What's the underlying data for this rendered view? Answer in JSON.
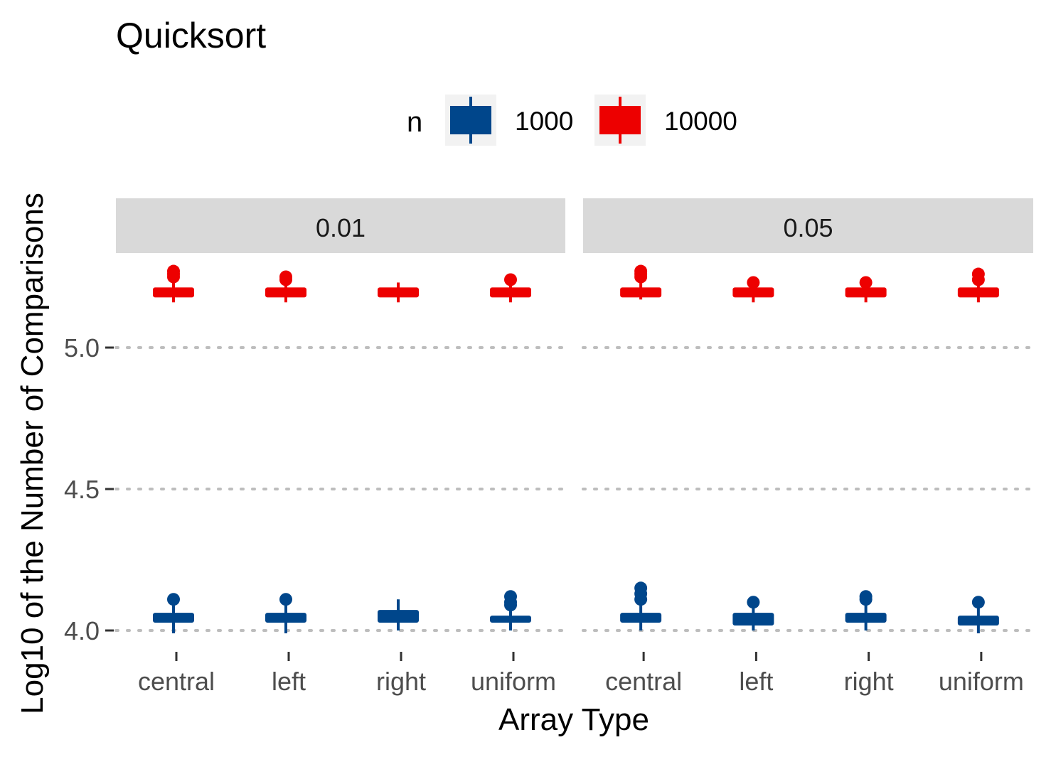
{
  "chart_data": {
    "type": "boxplot",
    "title": "Quicksort",
    "xlabel": "Array Type",
    "ylabel": "Log10 of the Number of Comparisons",
    "ylim": [
      3.93,
      5.33
    ],
    "yticks": [
      4.0,
      4.5,
      5.0
    ],
    "ytick_labels": [
      "4.0",
      "4.5",
      "5.0"
    ],
    "grid": "horizontal dotted",
    "legend": {
      "title": "n",
      "position": "top",
      "entries": [
        {
          "label": "1000",
          "color": "#00468b"
        },
        {
          "label": "10000",
          "color": "#ed0000"
        }
      ]
    },
    "facets": [
      {
        "label": "0.01",
        "categories": [
          "central",
          "left",
          "right",
          "uniform"
        ],
        "series": [
          {
            "name": "1000",
            "boxes": [
              {
                "min": 3.99,
                "q1": 4.03,
                "median": 4.04,
                "q3": 4.06,
                "max": 4.09,
                "outliers": [
                  4.11
                ]
              },
              {
                "min": 3.99,
                "q1": 4.03,
                "median": 4.04,
                "q3": 4.06,
                "max": 4.09,
                "outliers": [
                  4.11
                ]
              },
              {
                "min": 4.0,
                "q1": 4.03,
                "median": 4.05,
                "q3": 4.07,
                "max": 4.11,
                "outliers": []
              },
              {
                "min": 4.0,
                "q1": 4.03,
                "median": 4.04,
                "q3": 4.05,
                "max": 4.07,
                "outliers": [
                  4.09,
                  4.1,
                  4.12
                ]
              }
            ]
          },
          {
            "name": "10000",
            "boxes": [
              {
                "min": 5.16,
                "q1": 5.18,
                "median": 5.19,
                "q3": 5.21,
                "max": 5.23,
                "outliers": [
                  5.25,
                  5.26,
                  5.27
                ]
              },
              {
                "min": 5.16,
                "q1": 5.18,
                "median": 5.19,
                "q3": 5.21,
                "max": 5.23,
                "outliers": [
                  5.24,
                  5.25
                ]
              },
              {
                "min": 5.16,
                "q1": 5.18,
                "median": 5.19,
                "q3": 5.21,
                "max": 5.23,
                "outliers": []
              },
              {
                "min": 5.16,
                "q1": 5.18,
                "median": 5.19,
                "q3": 5.21,
                "max": 5.22,
                "outliers": [
                  5.24
                ]
              }
            ]
          }
        ]
      },
      {
        "label": "0.05",
        "categories": [
          "central",
          "left",
          "right",
          "uniform"
        ],
        "series": [
          {
            "name": "1000",
            "boxes": [
              {
                "min": 4.0,
                "q1": 4.03,
                "median": 4.04,
                "q3": 4.06,
                "max": 4.09,
                "outliers": [
                  4.11,
                  4.13,
                  4.15
                ]
              },
              {
                "min": 4.0,
                "q1": 4.02,
                "median": 4.04,
                "q3": 4.06,
                "max": 4.08,
                "outliers": [
                  4.1
                ]
              },
              {
                "min": 4.0,
                "q1": 4.03,
                "median": 4.04,
                "q3": 4.06,
                "max": 4.09,
                "outliers": [
                  4.11,
                  4.12
                ]
              },
              {
                "min": 3.99,
                "q1": 4.02,
                "median": 4.04,
                "q3": 4.05,
                "max": 4.08,
                "outliers": [
                  4.1
                ]
              }
            ]
          },
          {
            "name": "10000",
            "boxes": [
              {
                "min": 5.17,
                "q1": 5.18,
                "median": 5.19,
                "q3": 5.21,
                "max": 5.23,
                "outliers": [
                  5.25,
                  5.26,
                  5.27
                ]
              },
              {
                "min": 5.16,
                "q1": 5.18,
                "median": 5.19,
                "q3": 5.21,
                "max": 5.22,
                "outliers": [
                  5.23
                ]
              },
              {
                "min": 5.16,
                "q1": 5.18,
                "median": 5.19,
                "q3": 5.21,
                "max": 5.22,
                "outliers": [
                  5.23
                ]
              },
              {
                "min": 5.16,
                "q1": 5.18,
                "median": 5.19,
                "q3": 5.21,
                "max": 5.23,
                "outliers": [
                  5.24,
                  5.26
                ]
              }
            ]
          }
        ]
      }
    ]
  }
}
